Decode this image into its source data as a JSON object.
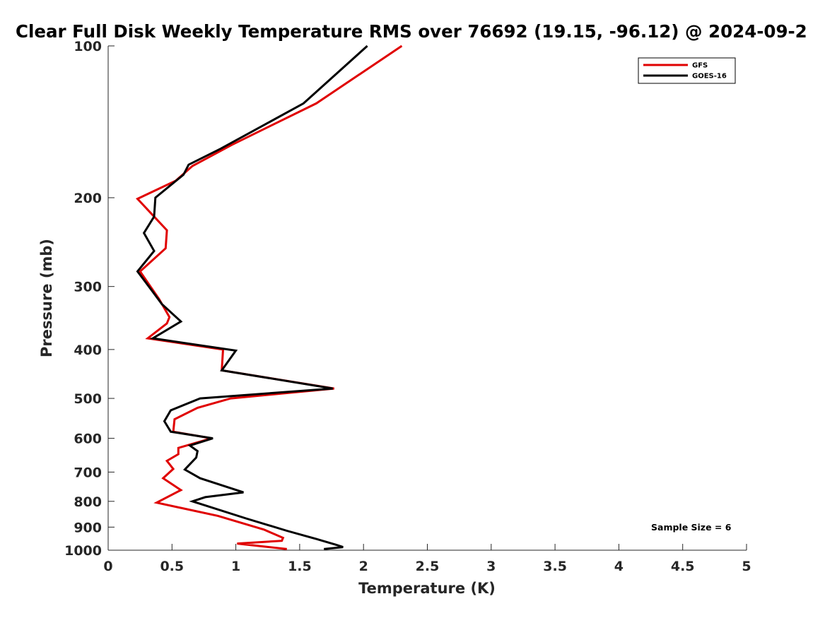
{
  "chart_data": {
    "type": "line",
    "title": "Clear Full Disk Weekly Temperature RMS over 76692 (19.15, -96.12) @ 2024-09-2",
    "xlabel": "Temperature (K)",
    "ylabel": "Pressure (mb)",
    "xlim": [
      0,
      5
    ],
    "ylim": [
      100,
      1000
    ],
    "y_scale": "log",
    "y_reversed": true,
    "xticks": [
      0,
      0.5,
      1,
      1.5,
      2,
      2.5,
      3,
      3.5,
      4,
      4.5,
      5
    ],
    "xtick_labels": [
      "0",
      "0.5",
      "1",
      "1.5",
      "2",
      "2.5",
      "3",
      "3.5",
      "4",
      "4.5",
      "5"
    ],
    "yticks": [
      100,
      200,
      300,
      400,
      500,
      600,
      700,
      800,
      900,
      1000
    ],
    "ytick_labels": [
      "100",
      "200",
      "300",
      "400",
      "500",
      "600",
      "700",
      "800",
      "900",
      "1000"
    ],
    "legend_position": "top-right",
    "annotation": "Sample Size = 6",
    "series": [
      {
        "name": "GFS",
        "color": "#e00000",
        "points": [
          [
            2.3,
            100
          ],
          [
            1.63,
            130
          ],
          [
            0.97,
            157
          ],
          [
            0.66,
            173
          ],
          [
            0.53,
            185
          ],
          [
            0.23,
            201
          ],
          [
            0.36,
            218
          ],
          [
            0.46,
            232
          ],
          [
            0.45,
            252
          ],
          [
            0.25,
            280
          ],
          [
            0.4,
            318
          ],
          [
            0.48,
            345
          ],
          [
            0.46,
            355
          ],
          [
            0.31,
            380
          ],
          [
            0.9,
            400
          ],
          [
            0.89,
            440
          ],
          [
            1.77,
            478
          ],
          [
            0.96,
            500
          ],
          [
            0.7,
            522
          ],
          [
            0.52,
            550
          ],
          [
            0.51,
            582
          ],
          [
            0.81,
            600
          ],
          [
            0.55,
            627
          ],
          [
            0.55,
            645
          ],
          [
            0.46,
            665
          ],
          [
            0.51,
            690
          ],
          [
            0.43,
            720
          ],
          [
            0.57,
            760
          ],
          [
            0.38,
            805
          ],
          [
            0.86,
            855
          ],
          [
            1.22,
            910
          ],
          [
            1.37,
            945
          ],
          [
            1.36,
            958
          ],
          [
            1.01,
            970
          ],
          [
            1.4,
            995
          ]
        ]
      },
      {
        "name": "GOES-16",
        "color": "#000000",
        "points": [
          [
            2.03,
            100
          ],
          [
            1.53,
            130
          ],
          [
            0.88,
            160
          ],
          [
            0.63,
            172
          ],
          [
            0.59,
            180
          ],
          [
            0.37,
            200
          ],
          [
            0.36,
            218
          ],
          [
            0.28,
            235
          ],
          [
            0.36,
            255
          ],
          [
            0.23,
            280
          ],
          [
            0.34,
            305
          ],
          [
            0.42,
            325
          ],
          [
            0.57,
            352
          ],
          [
            0.35,
            380
          ],
          [
            1.0,
            402
          ],
          [
            0.89,
            440
          ],
          [
            1.76,
            478
          ],
          [
            0.72,
            500
          ],
          [
            0.49,
            528
          ],
          [
            0.44,
            555
          ],
          [
            0.49,
            582
          ],
          [
            0.82,
            600
          ],
          [
            0.64,
            620
          ],
          [
            0.7,
            636
          ],
          [
            0.69,
            655
          ],
          [
            0.6,
            692
          ],
          [
            0.72,
            720
          ],
          [
            1.06,
            768
          ],
          [
            0.76,
            785
          ],
          [
            0.66,
            800
          ],
          [
            1.08,
            865
          ],
          [
            1.4,
            915
          ],
          [
            1.63,
            950
          ],
          [
            1.78,
            975
          ],
          [
            1.84,
            986
          ],
          [
            1.69,
            995
          ]
        ]
      }
    ]
  }
}
